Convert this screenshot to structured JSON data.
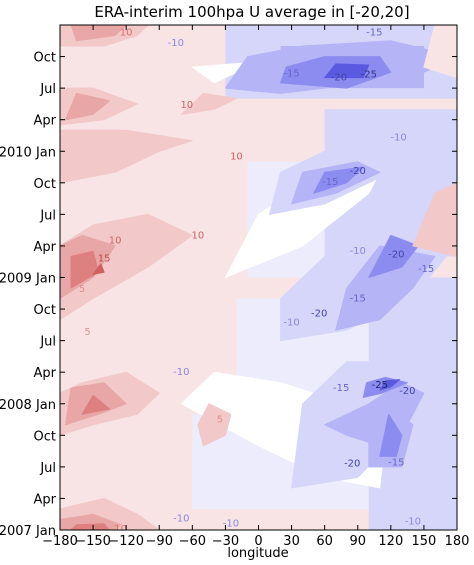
{
  "chart_data": {
    "type": "heatmap",
    "subtype": "filled-contour",
    "title": "ERA-interim 100hpa U average in [-20,20]",
    "xlabel": "longitude",
    "ylabel": "",
    "xlim": [
      -180,
      180
    ],
    "x_ticks": [
      -180,
      -150,
      -120,
      -90,
      -60,
      -30,
      0,
      30,
      60,
      90,
      120,
      150,
      180
    ],
    "x_tick_labels": [
      "−180",
      "−150",
      "−120",
      "−90",
      "−60",
      "−30",
      "0",
      "30",
      "60",
      "90",
      "120",
      "150",
      "180"
    ],
    "y_start": "2007-01",
    "y_end": "2010-12",
    "y_ticks": [
      {
        "month": 0,
        "label": "2007 Jan"
      },
      {
        "month": 3,
        "label": "Apr"
      },
      {
        "month": 6,
        "label": "Jul"
      },
      {
        "month": 9,
        "label": "Oct"
      },
      {
        "month": 12,
        "label": "2008 Jan"
      },
      {
        "month": 15,
        "label": "Apr"
      },
      {
        "month": 18,
        "label": "Jul"
      },
      {
        "month": 21,
        "label": "Oct"
      },
      {
        "month": 24,
        "label": "2009 Jan"
      },
      {
        "month": 27,
        "label": "Apr"
      },
      {
        "month": 30,
        "label": "Jul"
      },
      {
        "month": 33,
        "label": "Oct"
      },
      {
        "month": 36,
        "label": "2010 Jan"
      },
      {
        "month": 39,
        "label": "Apr"
      },
      {
        "month": 42,
        "label": "Jul"
      },
      {
        "month": 45,
        "label": "Oct"
      }
    ],
    "colormap": "bwr",
    "levels": [
      -25,
      -20,
      -15,
      -10,
      -5,
      0,
      5,
      10,
      15,
      20,
      25
    ],
    "level_colors": {
      "-25": "#5a5ae0",
      "-20": "#8c8cf0",
      "-15": "#b4b4f6",
      "-10": "#d6d6fa",
      "-5": "#ececfc",
      "0": "#ffffff",
      "5": "#f8e4e4",
      "10": "#f2c8c8",
      "15": "#e8a6a6",
      "20": "#de8080",
      "25": "#d26060"
    },
    "contour_labels": [
      {
        "lon": -120,
        "month": 47.3,
        "text": "10",
        "color": "#e07070"
      },
      {
        "lon": -75,
        "month": 46.3,
        "text": "-10",
        "color": "#8888dd"
      },
      {
        "lon": 105,
        "month": 47.3,
        "text": "-15",
        "color": "#6666cc"
      },
      {
        "lon": 30,
        "month": 43.4,
        "text": "-15",
        "color": "#6666cc"
      },
      {
        "lon": 73,
        "month": 43.0,
        "text": "-20",
        "color": "#4444aa"
      },
      {
        "lon": 100,
        "month": 43.3,
        "text": "-25",
        "color": "#333388"
      },
      {
        "lon": -65,
        "month": 40.4,
        "text": "10",
        "color": "#d06060"
      },
      {
        "lon": 127,
        "month": 37.3,
        "text": "-10",
        "color": "#8888dd"
      },
      {
        "lon": -20,
        "month": 35.5,
        "text": "10",
        "color": "#d06060"
      },
      {
        "lon": 65,
        "month": 33.1,
        "text": "-15",
        "color": "#6666cc"
      },
      {
        "lon": 90,
        "month": 34.1,
        "text": "-20",
        "color": "#4444aa"
      },
      {
        "lon": -130,
        "month": 27.5,
        "text": "10",
        "color": "#d06060"
      },
      {
        "lon": -140,
        "month": 25.8,
        "text": "15",
        "color": "#c04848"
      },
      {
        "lon": -55,
        "month": 28.0,
        "text": "10",
        "color": "#d06060"
      },
      {
        "lon": 90,
        "month": 26.5,
        "text": "-10",
        "color": "#8888dd"
      },
      {
        "lon": 125,
        "month": 26.2,
        "text": "-20",
        "color": "#4444aa"
      },
      {
        "lon": 152,
        "month": 24.8,
        "text": "-15",
        "color": "#6666cc"
      },
      {
        "lon": -160,
        "month": 22.9,
        "text": "5",
        "color": "#e09090"
      },
      {
        "lon": 90,
        "month": 22.0,
        "text": "-15",
        "color": "#6666cc"
      },
      {
        "lon": 55,
        "month": 20.6,
        "text": "-20",
        "color": "#4444aa"
      },
      {
        "lon": 30,
        "month": 19.7,
        "text": "-10",
        "color": "#8888dd"
      },
      {
        "lon": -155,
        "month": 18.8,
        "text": "5",
        "color": "#e09090"
      },
      {
        "lon": -70,
        "month": 15.0,
        "text": "-10",
        "color": "#8888dd"
      },
      {
        "lon": 75,
        "month": 13.5,
        "text": "-15",
        "color": "#6666cc"
      },
      {
        "lon": 110,
        "month": 13.8,
        "text": "-25",
        "color": "#222266"
      },
      {
        "lon": 135,
        "month": 13.2,
        "text": "-20",
        "color": "#4444aa"
      },
      {
        "lon": -35,
        "month": 10.5,
        "text": "5",
        "color": "#e09090"
      },
      {
        "lon": 85,
        "month": 6.3,
        "text": "-20",
        "color": "#4444aa"
      },
      {
        "lon": 125,
        "month": 6.4,
        "text": "-15",
        "color": "#6666cc"
      },
      {
        "lon": -70,
        "month": 1.1,
        "text": "-10",
        "color": "#8888dd"
      },
      {
        "lon": -25,
        "month": 0.6,
        "text": "-10",
        "color": "#8888dd"
      },
      {
        "lon": -125,
        "month": 0.1,
        "text": "10",
        "color": "#e07070"
      },
      {
        "lon": 140,
        "month": 0.8,
        "text": "-10",
        "color": "#8888dd"
      }
    ]
  }
}
